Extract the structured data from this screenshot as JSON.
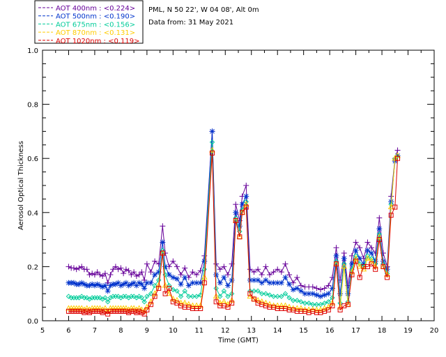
{
  "chart_data": {
    "type": "line",
    "title": "",
    "station": "PML, N 50 22', W 04 08', Alt 0m",
    "date_text": "Data from: 31 May 2021",
    "xlabel": "Time (GMT)",
    "ylabel": "Aerosol Optical Thickness",
    "xlim": [
      5,
      20
    ],
    "ylim": [
      0.0,
      1.0
    ],
    "xticks": [
      "5",
      "6",
      "7",
      "8",
      "9",
      "10",
      "11",
      "12",
      "13",
      "14",
      "15",
      "16",
      "17",
      "18",
      "19",
      "20"
    ],
    "yticks": [
      "0.0",
      "0.2",
      "0.4",
      "0.6",
      "0.8",
      "1.0"
    ],
    "legend_position": "top-left",
    "x": [
      6.0,
      6.1,
      6.2,
      6.3,
      6.4,
      6.5,
      6.6,
      6.7,
      6.8,
      6.9,
      7.0,
      7.1,
      7.2,
      7.3,
      7.4,
      7.5,
      7.6,
      7.7,
      7.8,
      7.9,
      8.0,
      8.1,
      8.2,
      8.3,
      8.4,
      8.5,
      8.6,
      8.7,
      8.8,
      8.9,
      9.0,
      9.15,
      9.3,
      9.45,
      9.6,
      9.7,
      9.85,
      10.0,
      10.15,
      10.3,
      10.45,
      10.6,
      10.75,
      10.9,
      11.05,
      11.2,
      11.5,
      11.65,
      11.8,
      11.95,
      12.1,
      12.25,
      12.4,
      12.55,
      12.65,
      12.8,
      12.95,
      13.1,
      13.25,
      13.4,
      13.55,
      13.7,
      13.85,
      14.0,
      14.15,
      14.3,
      14.45,
      14.6,
      14.75,
      14.9,
      15.05,
      15.2,
      15.35,
      15.5,
      15.65,
      15.8,
      15.95,
      16.1,
      16.25,
      16.4,
      16.55,
      16.7,
      16.85,
      17.0,
      17.15,
      17.3,
      17.45,
      17.6,
      17.75,
      17.9,
      18.05,
      18.2,
      18.35,
      18.5,
      18.6
    ],
    "series": [
      {
        "name": "AOT  400nm",
        "legend_value": "<0.224>",
        "color": "#660099",
        "values": [
          0.2,
          0.195,
          0.195,
          0.19,
          0.195,
          0.2,
          0.19,
          0.19,
          0.17,
          0.175,
          0.17,
          0.18,
          0.17,
          0.165,
          0.175,
          0.14,
          0.17,
          0.19,
          0.2,
          0.19,
          0.195,
          0.175,
          0.19,
          0.185,
          0.17,
          0.18,
          0.165,
          0.17,
          0.18,
          0.15,
          0.21,
          0.18,
          0.22,
          0.21,
          0.35,
          0.25,
          0.2,
          0.22,
          0.2,
          0.17,
          0.195,
          0.16,
          0.18,
          0.17,
          0.185,
          0.24,
          0.7,
          0.21,
          0.19,
          0.2,
          0.17,
          0.21,
          0.43,
          0.37,
          0.46,
          0.5,
          0.19,
          0.18,
          0.19,
          0.17,
          0.2,
          0.17,
          0.18,
          0.19,
          0.18,
          0.21,
          0.17,
          0.14,
          0.16,
          0.13,
          0.125,
          0.125,
          0.125,
          0.12,
          0.115,
          0.12,
          0.13,
          0.16,
          0.27,
          0.15,
          0.25,
          0.13,
          0.24,
          0.29,
          0.27,
          0.23,
          0.29,
          0.27,
          0.25,
          0.38,
          0.25,
          0.2,
          0.46,
          0.6,
          0.63
        ]
      },
      {
        "name": "AOT  500nm",
        "legend_value": "<0.190>",
        "color": "#0033cc",
        "values": [
          0.14,
          0.14,
          0.14,
          0.135,
          0.135,
          0.14,
          0.135,
          0.13,
          0.13,
          0.135,
          0.13,
          0.135,
          0.13,
          0.125,
          0.13,
          0.11,
          0.13,
          0.135,
          0.135,
          0.14,
          0.13,
          0.135,
          0.14,
          0.13,
          0.135,
          0.14,
          0.13,
          0.14,
          0.135,
          0.12,
          0.14,
          0.14,
          0.17,
          0.18,
          0.29,
          0.2,
          0.17,
          0.16,
          0.155,
          0.135,
          0.16,
          0.13,
          0.14,
          0.14,
          0.14,
          0.22,
          0.7,
          0.17,
          0.14,
          0.16,
          0.13,
          0.15,
          0.4,
          0.35,
          0.43,
          0.46,
          0.15,
          0.15,
          0.15,
          0.14,
          0.15,
          0.14,
          0.14,
          0.14,
          0.14,
          0.16,
          0.135,
          0.115,
          0.12,
          0.11,
          0.1,
          0.1,
          0.1,
          0.095,
          0.09,
          0.095,
          0.1,
          0.12,
          0.24,
          0.1,
          0.23,
          0.1,
          0.21,
          0.26,
          0.23,
          0.21,
          0.26,
          0.25,
          0.22,
          0.34,
          0.22,
          0.19,
          0.44,
          0.59,
          0.61
        ]
      },
      {
        "name": "AOT  675nm",
        "legend_value": "<0.156>",
        "color": "#00cc99",
        "values": [
          0.09,
          0.085,
          0.085,
          0.085,
          0.085,
          0.09,
          0.085,
          0.085,
          0.08,
          0.085,
          0.085,
          0.085,
          0.085,
          0.08,
          0.085,
          0.07,
          0.085,
          0.09,
          0.09,
          0.09,
          0.085,
          0.09,
          0.09,
          0.085,
          0.09,
          0.09,
          0.085,
          0.09,
          0.085,
          0.07,
          0.09,
          0.1,
          0.13,
          0.15,
          0.26,
          0.17,
          0.13,
          0.115,
          0.11,
          0.09,
          0.11,
          0.09,
          0.09,
          0.09,
          0.095,
          0.19,
          0.66,
          0.12,
          0.09,
          0.11,
          0.09,
          0.1,
          0.38,
          0.33,
          0.41,
          0.44,
          0.11,
          0.11,
          0.11,
          0.1,
          0.1,
          0.095,
          0.09,
          0.09,
          0.09,
          0.1,
          0.085,
          0.075,
          0.075,
          0.07,
          0.065,
          0.065,
          0.06,
          0.06,
          0.06,
          0.065,
          0.07,
          0.085,
          0.22,
          0.065,
          0.21,
          0.07,
          0.19,
          0.24,
          0.21,
          0.2,
          0.24,
          0.23,
          0.21,
          0.32,
          0.21,
          0.175,
          0.43,
          0.6,
          0.61
        ]
      },
      {
        "name": "AOT  870nm",
        "legend_value": "<0.131>",
        "color": "#ffcc00",
        "values": [
          0.045,
          0.045,
          0.045,
          0.045,
          0.045,
          0.045,
          0.04,
          0.045,
          0.04,
          0.045,
          0.045,
          0.045,
          0.045,
          0.04,
          0.045,
          0.035,
          0.045,
          0.045,
          0.045,
          0.045,
          0.045,
          0.045,
          0.045,
          0.04,
          0.045,
          0.045,
          0.04,
          0.045,
          0.04,
          0.035,
          0.05,
          0.07,
          0.1,
          0.13,
          0.25,
          0.13,
          0.1,
          0.08,
          0.075,
          0.065,
          0.065,
          0.06,
          0.055,
          0.055,
          0.055,
          0.16,
          0.63,
          0.09,
          0.065,
          0.07,
          0.06,
          0.075,
          0.37,
          0.31,
          0.4,
          0.43,
          0.09,
          0.08,
          0.075,
          0.07,
          0.065,
          0.06,
          0.055,
          0.055,
          0.055,
          0.055,
          0.05,
          0.045,
          0.045,
          0.045,
          0.04,
          0.04,
          0.04,
          0.04,
          0.04,
          0.045,
          0.05,
          0.065,
          0.21,
          0.05,
          0.2,
          0.06,
          0.18,
          0.23,
          0.2,
          0.19,
          0.23,
          0.22,
          0.2,
          0.31,
          0.2,
          0.17,
          0.42,
          0.6,
          0.61
        ]
      },
      {
        "name": "AOT 1020nm",
        "legend_value": "<0.119>",
        "color": "#dd0000",
        "values": [
          0.035,
          0.035,
          0.035,
          0.035,
          0.035,
          0.035,
          0.03,
          0.035,
          0.03,
          0.035,
          0.035,
          0.035,
          0.035,
          0.03,
          0.035,
          0.025,
          0.035,
          0.035,
          0.035,
          0.035,
          0.035,
          0.035,
          0.035,
          0.03,
          0.035,
          0.035,
          0.03,
          0.035,
          0.03,
          0.025,
          0.04,
          0.06,
          0.09,
          0.12,
          0.25,
          0.1,
          0.12,
          0.07,
          0.065,
          0.055,
          0.05,
          0.05,
          0.045,
          0.045,
          0.045,
          0.14,
          0.62,
          0.07,
          0.055,
          0.055,
          0.05,
          0.065,
          0.37,
          0.31,
          0.4,
          0.42,
          0.1,
          0.08,
          0.065,
          0.06,
          0.055,
          0.05,
          0.05,
          0.045,
          0.045,
          0.045,
          0.04,
          0.04,
          0.035,
          0.035,
          0.035,
          0.03,
          0.035,
          0.03,
          0.03,
          0.035,
          0.04,
          0.055,
          0.21,
          0.04,
          0.055,
          0.06,
          0.17,
          0.22,
          0.16,
          0.2,
          0.2,
          0.21,
          0.19,
          0.3,
          0.2,
          0.16,
          0.39,
          0.42,
          0.6
        ]
      }
    ]
  }
}
